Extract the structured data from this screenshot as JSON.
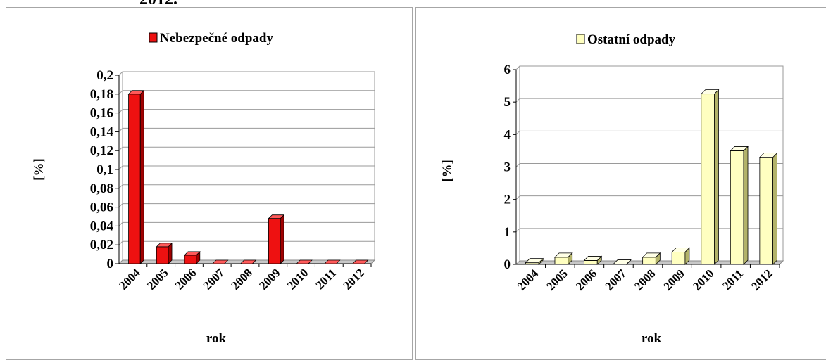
{
  "page": {
    "top_fragment": "2012."
  },
  "chart_data": [
    {
      "type": "bar",
      "legend": "Nebezpečné odpady",
      "legend_position": "top",
      "xlabel": "rok",
      "ylabel": "[%]",
      "categories": [
        "2004",
        "2005",
        "2006",
        "2007",
        "2008",
        "2009",
        "2010",
        "2011",
        "2012"
      ],
      "values": [
        0.18,
        0.018,
        0.009,
        0,
        0,
        0.048,
        0,
        0,
        0
      ],
      "ylim": [
        0,
        0.2
      ],
      "yticks": [
        "0",
        "0,02",
        "0,04",
        "0,06",
        "0,08",
        "0,1",
        "0,12",
        "0,14",
        "0,16",
        "0,18",
        "0,2"
      ],
      "grid": true,
      "color": "#ee1111",
      "side_color": "#a00000",
      "top_color": "#ff5a5a"
    },
    {
      "type": "bar",
      "legend": "Ostatní odpady",
      "legend_position": "top",
      "xlabel": "rok",
      "ylabel": "[%]",
      "categories": [
        "2004",
        "2005",
        "2006",
        "2007",
        "2008",
        "2009",
        "2010",
        "2011",
        "2012"
      ],
      "values": [
        0.05,
        0.22,
        0.12,
        0.01,
        0.22,
        0.38,
        5.25,
        3.5,
        3.3
      ],
      "ylim": [
        0,
        6
      ],
      "yticks": [
        "0",
        "1",
        "2",
        "3",
        "4",
        "5",
        "6"
      ],
      "grid": true,
      "color": "#ffffc0",
      "side_color": "#b3b36a",
      "top_color": "#ffffe6"
    }
  ]
}
